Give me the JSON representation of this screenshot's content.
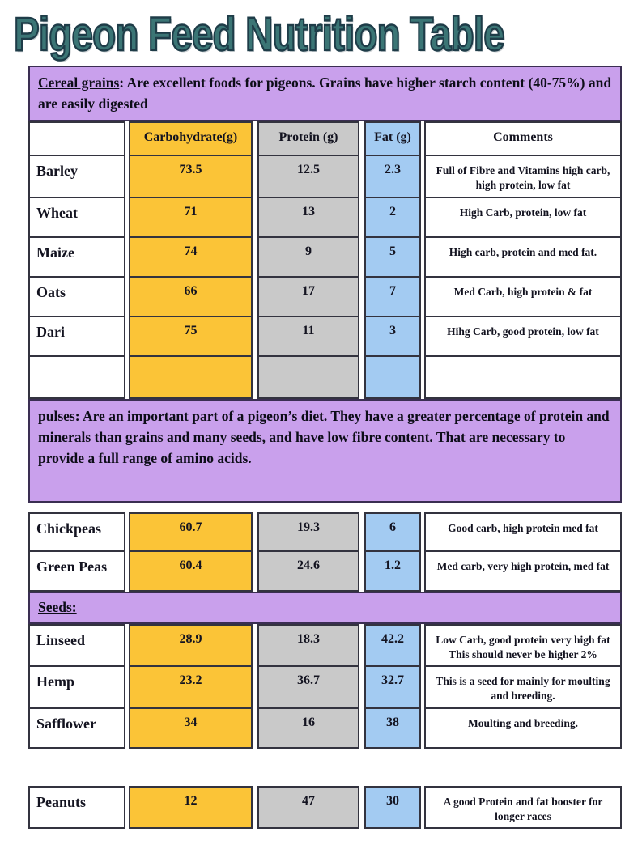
{
  "page": {
    "title": "Pigeon Feed Nutrition Table"
  },
  "colors": {
    "title": "#3B7575",
    "banner_bg": "#C9A0EC",
    "carb_bg": "#FBC437",
    "protein_bg": "#C9C9C9",
    "fat_bg": "#A3CBF2"
  },
  "columns": {
    "carb": "Carbohydrate(g)",
    "protein": "Protein (g)",
    "fat": "Fat (g)",
    "comments": "Comments"
  },
  "sections": [
    {
      "banner": {
        "lead": "Cereal grains",
        "rest": ": Are excellent foods for pigeons. Grains have higher starch content (40-75%) and are easily digested"
      },
      "rows": [
        {
          "name": "Barley",
          "carb": "73.5",
          "protein": "12.5",
          "fat": "2.3",
          "comment": "Full of Fibre and Vitamins high carb,\nhigh protein, low fat"
        },
        {
          "name": "Wheat",
          "carb": "71",
          "protein": "13",
          "fat": "2",
          "comment": "High Carb, protein, low fat"
        },
        {
          "name": "Maize",
          "carb": "74",
          "protein": "9",
          "fat": "5",
          "comment": "High carb, protein and med fat."
        },
        {
          "name": "Oats",
          "carb": "66",
          "protein": "17",
          "fat": "7",
          "comment": "Med Carb, high protein & fat"
        },
        {
          "name": "Dari",
          "carb": "75",
          "protein": "11",
          "fat": "3",
          "comment": "Hihg Carb, good protein, low fat"
        }
      ]
    },
    {
      "banner": {
        "lead": "pulses:",
        "rest": " Are an important part of a pigeon’s diet. They have a greater percentage of protein and minerals than grains and many seeds, and have low fibre content. That are necessary to provide a full range of amino acids."
      },
      "rows": [
        {
          "name": "Chickpeas",
          "carb": "60.7",
          "protein": "19.3",
          "fat": "6",
          "comment": "Good carb, high protein med fat"
        },
        {
          "name": "Green Peas",
          "carb": "60.4",
          "protein": "24.6",
          "fat": "1.2",
          "comment": "Med carb, very high protein, med fat"
        }
      ]
    },
    {
      "banner": {
        "lead": "Seeds:",
        "rest": ""
      },
      "rows": [
        {
          "name": "Linseed",
          "carb": "28.9",
          "protein": "18.3",
          "fat": "42.2",
          "comment": "Low Carb, good protein very high fat\nThis should never be higher 2%"
        },
        {
          "name": "Hemp",
          "carb": "23.2",
          "protein": "36.7",
          "fat": "32.7",
          "comment": "This is a seed for mainly for moulting\nand breeding."
        },
        {
          "name": "Safflower",
          "carb": "34",
          "protein": "16",
          "fat": "38",
          "comment": "Moulting and breeding."
        }
      ]
    },
    {
      "rows": [
        {
          "name": "Peanuts",
          "carb": "12",
          "protein": "47",
          "fat": "30",
          "comment": "A good Protein and fat booster for\nlonger races"
        }
      ]
    }
  ]
}
